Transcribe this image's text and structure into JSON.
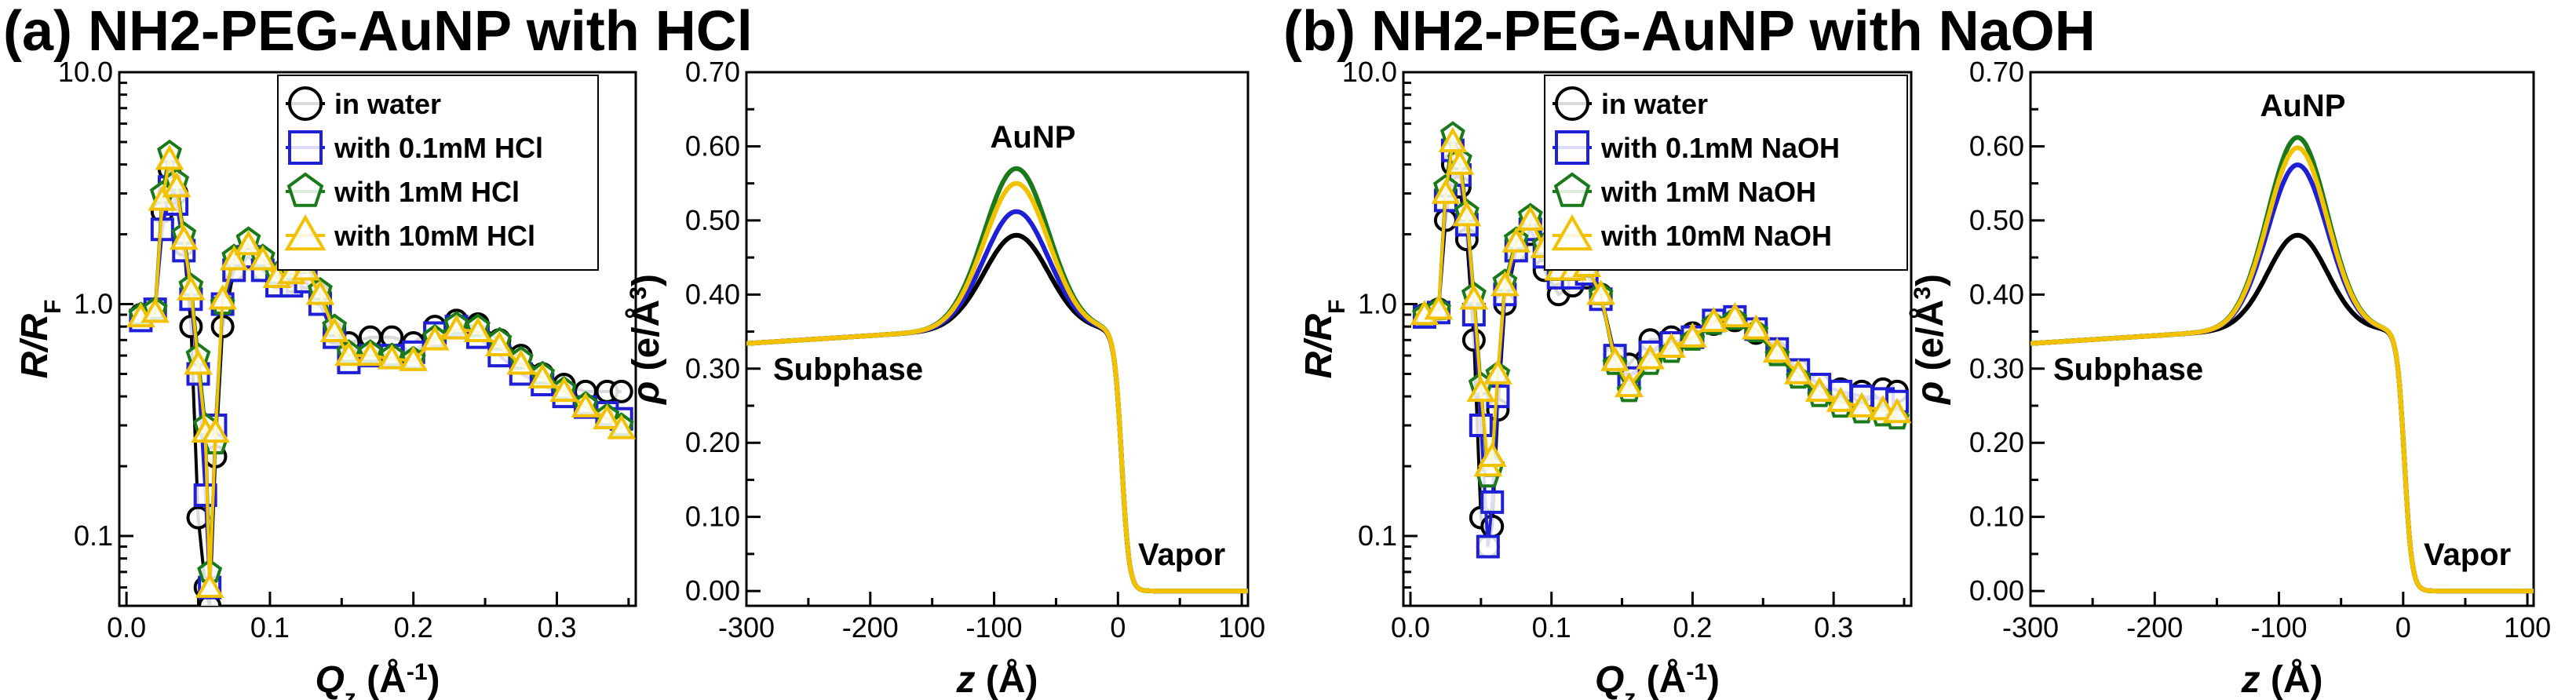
{
  "titles": {
    "left": "(a) NH2-PEG-AuNP with HCl",
    "right": "(b) NH2-PEG-AuNP with NaOH"
  },
  "colors": {
    "water": "#000000",
    "low": "#1f1fd6",
    "mid": "#1a7a1a",
    "high": "#f2c200"
  },
  "chart_data": [
    {
      "id": "a-reflectivity",
      "type": "line",
      "title": "",
      "xlabel": "Qz (Å-1)",
      "ylabel": "R/RF",
      "yscale": "log",
      "xlim": [
        -0.005,
        0.355
      ],
      "ylim": [
        0.05,
        10.0
      ],
      "xticks": [
        "0.0",
        "0.1",
        "0.2",
        "0.3"
      ],
      "yticks": [
        "10.0",
        "1.0",
        "0.1"
      ],
      "legend_position": "top-right",
      "x": [
        0.01,
        0.02,
        0.025,
        0.03,
        0.035,
        0.04,
        0.045,
        0.05,
        0.055,
        0.058,
        0.062,
        0.067,
        0.075,
        0.085,
        0.095,
        0.105,
        0.115,
        0.125,
        0.135,
        0.145,
        0.155,
        0.17,
        0.185,
        0.2,
        0.215,
        0.23,
        0.245,
        0.26,
        0.275,
        0.29,
        0.305,
        0.32,
        0.335,
        0.345
      ],
      "series": [
        {
          "name": "in water",
          "marker": "circle",
          "color_key": "water",
          "values": [
            0.9,
            0.95,
            2.5,
            3.8,
            3.0,
            1.8,
            0.8,
            0.12,
            0.06,
            0.05,
            0.22,
            0.8,
            1.4,
            1.6,
            1.4,
            1.3,
            1.25,
            1.3,
            1.1,
            0.75,
            0.68,
            0.72,
            0.72,
            0.68,
            0.8,
            0.85,
            0.82,
            0.7,
            0.6,
            0.5,
            0.45,
            0.42,
            0.42,
            0.42
          ]
        },
        {
          "name": "with 0.1mM HCl",
          "marker": "square",
          "color_key": "low",
          "values": [
            0.85,
            0.95,
            2.1,
            3.2,
            2.7,
            1.7,
            1.05,
            0.5,
            0.15,
            0.06,
            0.3,
            1.0,
            1.4,
            1.6,
            1.4,
            1.2,
            1.2,
            1.25,
            1.0,
            0.72,
            0.56,
            0.6,
            0.6,
            0.62,
            0.75,
            0.8,
            0.72,
            0.6,
            0.5,
            0.45,
            0.4,
            0.36,
            0.34,
            0.32
          ]
        },
        {
          "name": "with 1mM HCl",
          "marker": "pentagon",
          "color_key": "mid",
          "values": [
            0.9,
            0.95,
            3.0,
            4.5,
            3.4,
            2.0,
            1.2,
            0.6,
            0.3,
            0.07,
            0.25,
            1.0,
            1.6,
            1.9,
            1.6,
            1.35,
            1.4,
            1.5,
            1.15,
            0.8,
            0.62,
            0.62,
            0.6,
            0.58,
            0.72,
            0.82,
            0.8,
            0.7,
            0.58,
            0.5,
            0.43,
            0.37,
            0.33,
            0.3
          ]
        },
        {
          "name": "with 10mM HCl",
          "marker": "triangle",
          "color_key": "high",
          "values": [
            0.88,
            0.92,
            2.8,
            4.2,
            3.2,
            1.9,
            1.15,
            0.55,
            0.28,
            0.06,
            0.28,
            1.05,
            1.55,
            1.8,
            1.55,
            1.3,
            1.35,
            1.4,
            1.1,
            0.76,
            0.6,
            0.6,
            0.58,
            0.57,
            0.7,
            0.78,
            0.76,
            0.66,
            0.55,
            0.48,
            0.42,
            0.36,
            0.32,
            0.29
          ]
        }
      ]
    },
    {
      "id": "a-density",
      "type": "line",
      "title": "",
      "xlabel": "z (Å)",
      "ylabel": "ρ (e/Å3)",
      "xlim": [
        -300,
        105
      ],
      "ylim": [
        -0.02,
        0.7
      ],
      "xticks": [
        "-300",
        "-200",
        "-100",
        "0",
        "100"
      ],
      "yticks": [
        "0.00",
        "0.10",
        "0.20",
        "0.30",
        "0.40",
        "0.50",
        "0.60",
        "0.70"
      ],
      "annotations": [
        "AuNP",
        "Subphase",
        "Vapor"
      ],
      "baseline": 0.334,
      "slope": 0.00012,
      "plateau": 0.352,
      "center": -82,
      "width": 26,
      "step_center": 3,
      "step_width": 3,
      "series": [
        {
          "name": "in water",
          "color_key": "water",
          "peak": 0.48
        },
        {
          "name": "with 0.1mM HCl",
          "color_key": "low",
          "peak": 0.512
        },
        {
          "name": "with 1mM HCl",
          "color_key": "mid",
          "peak": 0.57
        },
        {
          "name": "with 10mM HCl",
          "color_key": "high",
          "peak": 0.55
        }
      ]
    },
    {
      "id": "b-reflectivity",
      "type": "line",
      "title": "",
      "xlabel": "Qz (Å-1)",
      "ylabel": "R/RF",
      "yscale": "log",
      "xlim": [
        -0.005,
        0.355
      ],
      "ylim": [
        0.05,
        10.0
      ],
      "xticks": [
        "0.0",
        "0.1",
        "0.2",
        "0.3"
      ],
      "yticks": [
        "10.0",
        "1.0",
        "0.1"
      ],
      "legend_position": "top-right",
      "x": [
        0.01,
        0.02,
        0.025,
        0.03,
        0.035,
        0.04,
        0.045,
        0.05,
        0.055,
        0.058,
        0.062,
        0.067,
        0.075,
        0.085,
        0.095,
        0.105,
        0.115,
        0.125,
        0.135,
        0.145,
        0.155,
        0.17,
        0.185,
        0.2,
        0.215,
        0.23,
        0.245,
        0.26,
        0.275,
        0.29,
        0.305,
        0.32,
        0.335,
        0.345
      ],
      "series": [
        {
          "name": "in water",
          "marker": "circle",
          "color_key": "water",
          "values": [
            0.9,
            0.95,
            2.3,
            4.0,
            3.2,
            1.9,
            0.7,
            0.12,
            0.09,
            0.11,
            0.35,
            1.0,
            1.7,
            2.0,
            1.4,
            1.1,
            1.2,
            1.3,
            1.1,
            0.6,
            0.55,
            0.7,
            0.72,
            0.75,
            0.82,
            0.85,
            0.75,
            0.62,
            0.52,
            0.45,
            0.43,
            0.42,
            0.43,
            0.42
          ]
        },
        {
          "name": "with 0.1mM NaOH",
          "marker": "square",
          "color_key": "low",
          "values": [
            0.88,
            0.92,
            2.8,
            4.6,
            3.6,
            2.2,
            0.9,
            0.3,
            0.09,
            0.14,
            0.4,
            1.1,
            1.7,
            2.1,
            1.6,
            1.3,
            1.3,
            1.35,
            1.05,
            0.6,
            0.48,
            0.62,
            0.68,
            0.72,
            0.85,
            0.88,
            0.78,
            0.64,
            0.52,
            0.45,
            0.42,
            0.4,
            0.39,
            0.38
          ]
        },
        {
          "name": "with 1mM NaOH",
          "marker": "pentagon",
          "color_key": "mid",
          "values": [
            0.9,
            0.95,
            3.2,
            5.4,
            4.2,
            2.5,
            1.1,
            0.45,
            0.18,
            0.2,
            0.5,
            1.25,
            1.9,
            2.4,
            1.8,
            1.4,
            1.4,
            1.45,
            1.1,
            0.55,
            0.42,
            0.55,
            0.62,
            0.7,
            0.82,
            0.86,
            0.76,
            0.6,
            0.48,
            0.4,
            0.36,
            0.34,
            0.33,
            0.32
          ]
        },
        {
          "name": "with 10mM NaOH",
          "marker": "triangle",
          "color_key": "high",
          "values": [
            0.9,
            0.95,
            3.0,
            5.0,
            4.0,
            2.4,
            1.05,
            0.42,
            0.2,
            0.22,
            0.5,
            1.2,
            1.85,
            2.3,
            1.75,
            1.4,
            1.4,
            1.45,
            1.1,
            0.57,
            0.44,
            0.58,
            0.65,
            0.72,
            0.84,
            0.88,
            0.78,
            0.62,
            0.5,
            0.42,
            0.38,
            0.36,
            0.35,
            0.34
          ]
        }
      ]
    },
    {
      "id": "b-density",
      "type": "line",
      "title": "",
      "xlabel": "z (Å)",
      "ylabel": "ρ (e/Å3)",
      "xlim": [
        -300,
        105
      ],
      "ylim": [
        -0.02,
        0.7
      ],
      "xticks": [
        "-300",
        "-200",
        "-100",
        "0",
        "100"
      ],
      "yticks": [
        "0.00",
        "0.10",
        "0.20",
        "0.30",
        "0.40",
        "0.50",
        "0.60",
        "0.70"
      ],
      "annotations": [
        "AuNP",
        "Subphase",
        "Vapor"
      ],
      "baseline": 0.334,
      "slope": 0.00012,
      "plateau": 0.352,
      "center": -85,
      "width": 24,
      "step_center": 1,
      "step_width": 3,
      "series": [
        {
          "name": "in water",
          "color_key": "water",
          "peak": 0.48
        },
        {
          "name": "with 0.1mM NaOH",
          "color_key": "low",
          "peak": 0.575
        },
        {
          "name": "with 1mM NaOH",
          "color_key": "mid",
          "peak": 0.612
        },
        {
          "name": "with 10mM NaOH",
          "color_key": "high",
          "peak": 0.598
        }
      ]
    }
  ]
}
